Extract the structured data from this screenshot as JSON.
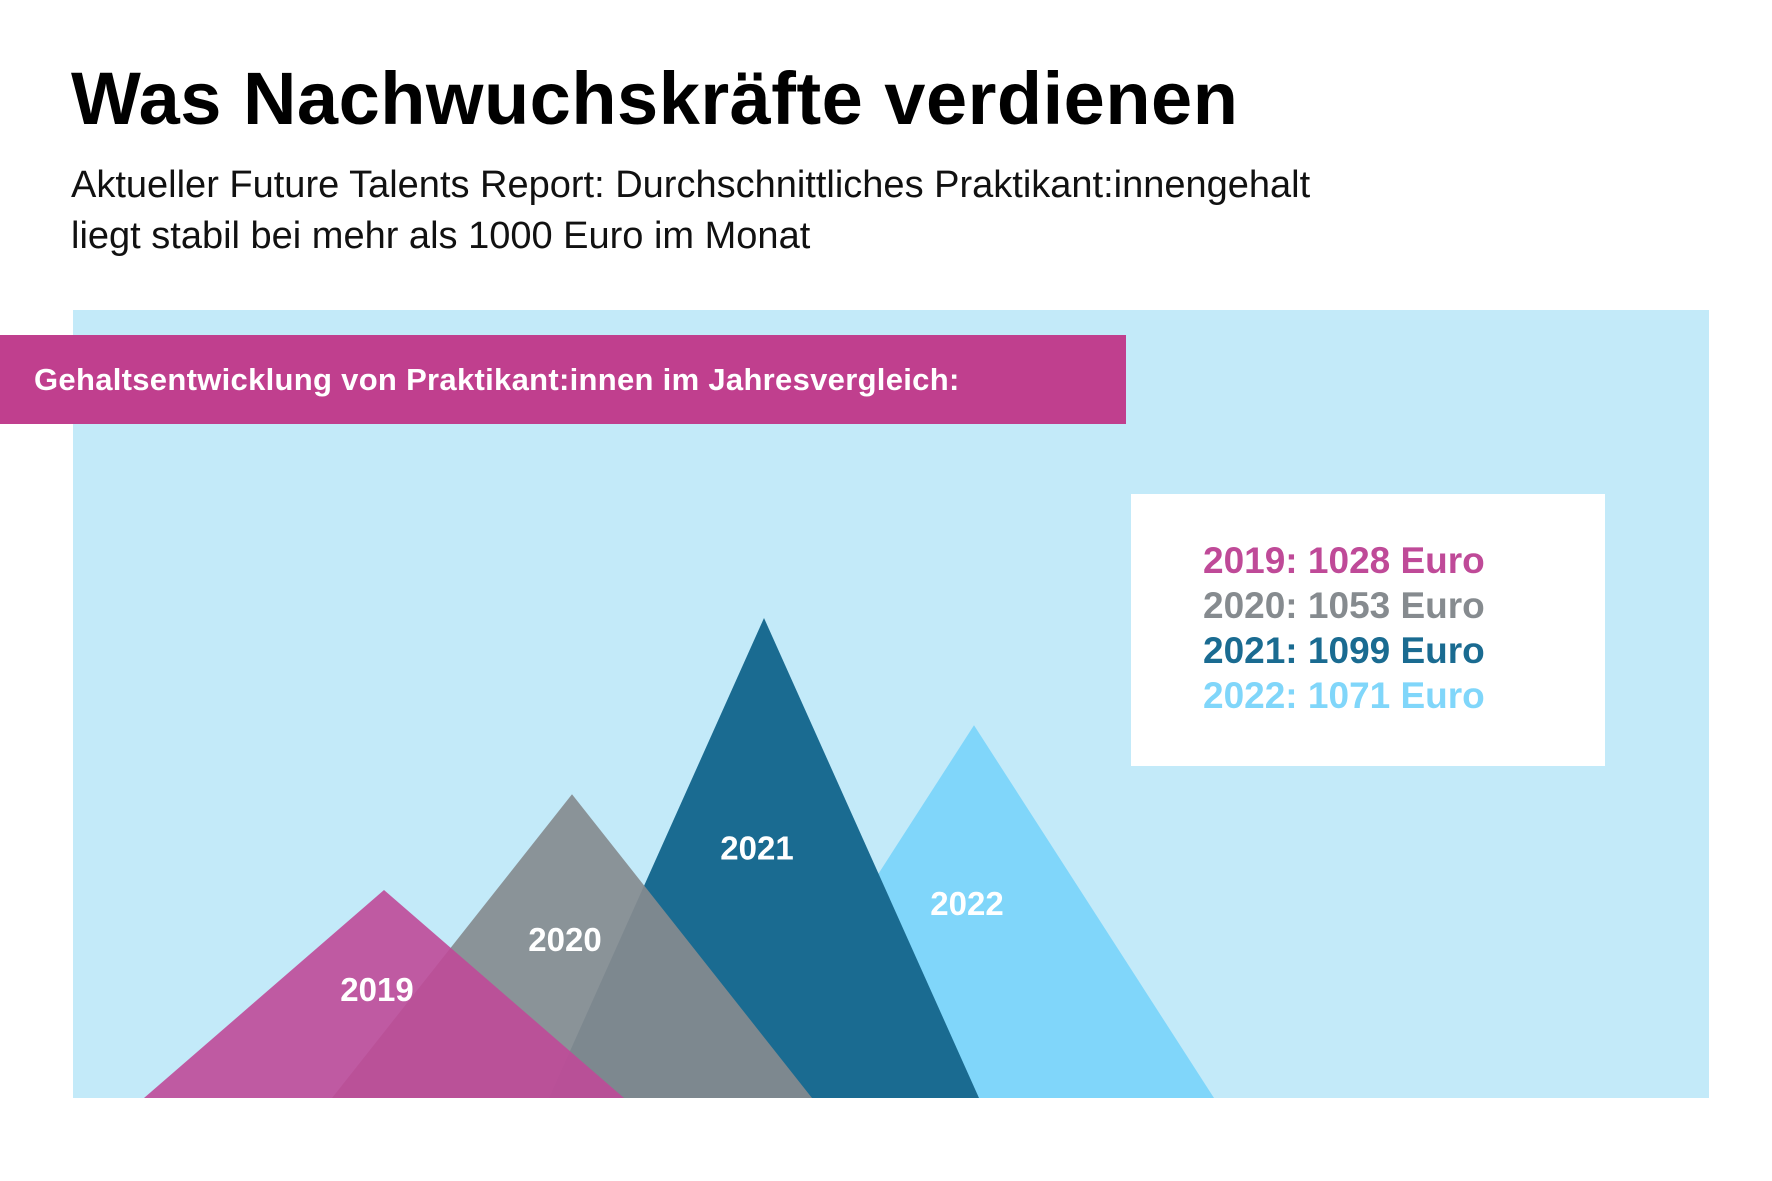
{
  "header": {
    "title": "Was Nachwuchskräfte verdienen",
    "subtitle_line1": "Aktueller Future Talents Report: Durchschnittliches Praktikant:innengehalt",
    "subtitle_line2": "liegt stabil bei mehr als 1000 Euro im Monat"
  },
  "colors": {
    "panel": "#c3eaf9",
    "band": "#c03f8e",
    "2019": "#bf4a98",
    "2020": "#868b8f",
    "2021": "#1a6b91",
    "2022": "#80d6fa"
  },
  "chart_data": {
    "type": "area",
    "title": "Gehaltsentwicklung von Praktikant:innen im Jahresvergleich:",
    "categories": [
      "2019",
      "2020",
      "2021",
      "2022"
    ],
    "values": [
      1028,
      1053,
      1099,
      1071
    ],
    "unit": "Euro",
    "legend": [
      {
        "year": "2019",
        "text": "2019: 1028 Euro",
        "color": "#bf4a98"
      },
      {
        "year": "2020",
        "text": "2020: 1053 Euro",
        "color": "#868b8f"
      },
      {
        "year": "2021",
        "text": "2021: 1099 Euro",
        "color": "#1a6b91"
      },
      {
        "year": "2022",
        "text": "2022: 1071 Euro",
        "color": "#80d6fa"
      }
    ],
    "legend_position": "top-right",
    "grid": false
  }
}
